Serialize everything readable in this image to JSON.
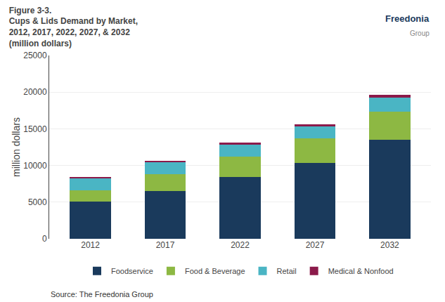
{
  "chart_data": {
    "type": "bar",
    "stacked": true,
    "title": "Figure 3-3.\nCups & Lids Demand by Market,\n2012, 2017, 2022, 2027, & 2032\n(million dollars)",
    "ylabel": "million dollars",
    "categories": [
      "2012",
      "2017",
      "2022",
      "2027",
      "2032"
    ],
    "series": [
      {
        "name": "Foodservice",
        "color": "#1a3a5c",
        "values": [
          5100,
          6500,
          8400,
          10300,
          13500
        ]
      },
      {
        "name": "Food & Beverage",
        "color": "#8db843",
        "values": [
          1500,
          2300,
          2800,
          3400,
          3800
        ]
      },
      {
        "name": "Retail",
        "color": "#4ab5c4",
        "values": [
          1600,
          1600,
          1600,
          1600,
          2000
        ]
      },
      {
        "name": "Medical & Nonfood",
        "color": "#8b1a4a",
        "values": [
          200,
          200,
          300,
          300,
          300
        ]
      }
    ],
    "ylim": [
      0,
      25000
    ],
    "yticks": [
      0,
      5000,
      10000,
      15000,
      20000,
      25000
    ],
    "grid": true,
    "legend": "bottom",
    "annotations": [
      "Freedonia",
      "Group",
      "Source: The Freedonia Group"
    ]
  }
}
